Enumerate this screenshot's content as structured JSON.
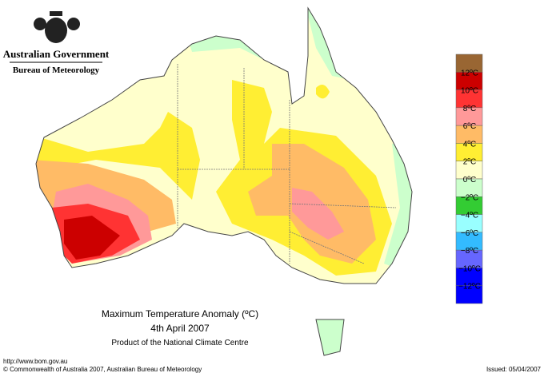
{
  "header": {
    "agency": "Australian Government",
    "bureau": "Bureau of Meteorology"
  },
  "map": {
    "title": "Maximum Temperature Anomaly (ºC)",
    "date": "4th April 2007",
    "product": "Product of the National Climate Centre"
  },
  "legend": {
    "swatches": [
      "#996633",
      "#cc0000",
      "#ff3333",
      "#ff9999",
      "#ffbb66",
      "#ffee33",
      "#ffffcc",
      "#ccffcc",
      "#33cc33",
      "#99ffff",
      "#33bbff",
      "#6666ff",
      "#0000ff"
    ],
    "labels": [
      "12ºC",
      "10ºC",
      "8ºC",
      "6ºC",
      "4ºC",
      "2ºC",
      "0ºC",
      "−2ºC",
      "−4ºC",
      "−6ºC",
      "−8ºC",
      "−10ºC",
      "−12ºC"
    ]
  },
  "footer": {
    "url": "http://www.bom.gov.au",
    "copyright": "© Commonwealth of Australia 2007, Australian Bureau of Meteorology",
    "issued": "Issued: 05/04/2007"
  }
}
